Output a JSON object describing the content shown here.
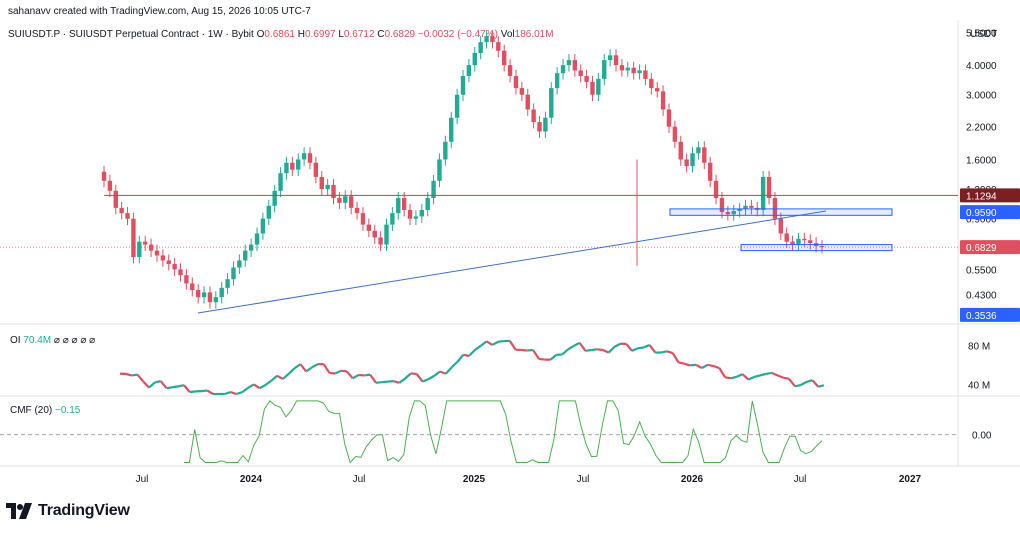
{
  "header": {
    "credit": "sahanavv created with TradingView.com, Aug 15, 2026 10:05 UTC-7",
    "symbol": "SUIUSDT.P · SUIUSDT Perpetual Contract · 1W · Bybit",
    "open_label": "O",
    "open": "0.6861",
    "high_label": "H",
    "high": "0.6997",
    "low_label": "L",
    "low": "0.6712",
    "close_label": "C",
    "close": "0.6829",
    "change": "−0.0032 (−0.47%)",
    "vol_label": "Vol",
    "vol": "186.01M"
  },
  "price_axis": {
    "currency": "USDT",
    "ticks": [
      "5.5000",
      "4.0000",
      "3.0000",
      "2.2000",
      "1.6000",
      "1.2000",
      "0.9000",
      "0.5500",
      "0.4300",
      "0.3500"
    ],
    "tick_values": [
      5.5,
      4.0,
      3.0,
      2.2,
      1.6,
      1.2,
      0.9,
      0.55,
      0.43,
      0.35
    ],
    "badges": [
      {
        "text": "1.1294",
        "value": 1.1294,
        "color": "#7b1f22"
      },
      {
        "text": "0.9590",
        "value": 0.959,
        "color": "#2962ff"
      },
      {
        "text": "0.6829",
        "value": 0.6829,
        "color": "#e04f5f"
      },
      {
        "text": "0.3536",
        "value": 0.3536,
        "color": "#2962ff"
      }
    ]
  },
  "time_axis": {
    "ticks": [
      "Jul",
      "2024",
      "Jul",
      "2025",
      "Jul",
      "2026",
      "Jul",
      "2027"
    ]
  },
  "oi": {
    "label": "OI",
    "value": "70.4M",
    "extras": "⌀ ⌀ ⌀ ⌀ ⌀",
    "ticks": [
      "80 M",
      "40 M"
    ]
  },
  "cmf": {
    "label": "CMF (20)",
    "value": "−0.15",
    "ticks": [
      "0.00"
    ]
  },
  "brand": {
    "name": "TradingView"
  },
  "colors": {
    "up": "#22ab94",
    "down": "#e04f5f",
    "trend": "#3d6fc8",
    "resistance": "#a05050",
    "zone": "#2962ff",
    "cmf": "#4caf50"
  },
  "chart_data": {
    "type": "candlestick",
    "title": "SUIUSDT Perpetual Contract · 1W · Bybit",
    "scale": "log",
    "ylim": [
      0.33,
      6.2
    ],
    "candles_close": [
      1.3,
      1.18,
      1.0,
      0.95,
      0.9,
      0.62,
      0.72,
      0.7,
      0.66,
      0.63,
      0.6,
      0.58,
      0.55,
      0.52,
      0.48,
      0.45,
      0.42,
      0.44,
      0.4,
      0.42,
      0.46,
      0.5,
      0.56,
      0.6,
      0.66,
      0.7,
      0.78,
      0.9,
      1.02,
      1.18,
      1.4,
      1.55,
      1.45,
      1.6,
      1.7,
      1.55,
      1.35,
      1.2,
      1.25,
      1.1,
      1.05,
      1.12,
      1.0,
      0.95,
      0.85,
      0.8,
      0.75,
      0.7,
      0.85,
      0.95,
      1.1,
      0.98,
      0.9,
      0.92,
      0.98,
      1.1,
      1.3,
      1.6,
      1.9,
      2.4,
      3.0,
      3.6,
      4.0,
      4.5,
      5.0,
      5.3,
      5.0,
      4.6,
      4.0,
      3.6,
      3.2,
      3.0,
      2.6,
      2.3,
      2.1,
      2.4,
      3.2,
      3.7,
      4.0,
      4.2,
      3.8,
      3.6,
      3.4,
      3.0,
      3.5,
      4.2,
      4.4,
      4.0,
      3.8,
      3.9,
      3.7,
      3.8,
      3.5,
      3.2,
      3.1,
      2.6,
      2.2,
      1.9,
      1.6,
      1.5,
      1.7,
      1.8,
      1.55,
      1.3,
      1.1,
      0.96,
      0.94,
      0.97,
      0.99,
      1.02,
      1.0,
      0.98,
      1.35,
      1.1,
      0.9,
      0.78,
      0.72,
      0.7,
      0.74,
      0.73,
      0.71,
      0.69,
      0.6829
    ],
    "resistance": 1.1294,
    "zones": [
      [
        0.93,
        0.99
      ],
      [
        0.66,
        0.7
      ]
    ],
    "trendline": {
      "from": [
        "Oct 2023",
        0.3536
      ],
      "to": [
        "Aug 2026",
        0.959
      ]
    },
    "oi_range_M": [
      30,
      100
    ],
    "cmf_range": [
      -0.2,
      0.25
    ]
  }
}
